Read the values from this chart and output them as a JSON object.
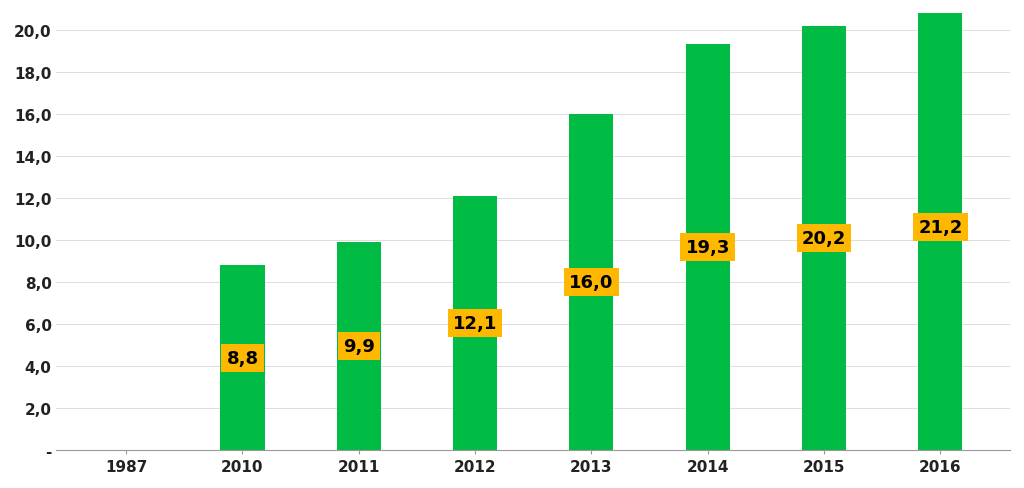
{
  "categories": [
    "1987",
    "2010",
    "2011",
    "2012",
    "2013",
    "2014",
    "2015",
    "2016"
  ],
  "values": [
    0,
    8.8,
    9.9,
    12.1,
    16.0,
    19.3,
    20.2,
    21.2
  ],
  "bar_color": "#00BB44",
  "label_bg_color": "#FFB800",
  "label_text_color": "#000000",
  "ylim": [
    0,
    20.8
  ],
  "yticks": [
    0,
    2.0,
    4.0,
    6.0,
    8.0,
    10.0,
    12.0,
    14.0,
    16.0,
    18.0,
    20.0
  ],
  "ytick_labels": [
    "-",
    "2,0",
    "4,0",
    "6,0",
    "8,0",
    "10,0",
    "12,0",
    "14,0",
    "16,0",
    "18,0",
    "20,0"
  ],
  "bar_width": 0.38,
  "label_fontsize": 13,
  "tick_fontsize": 11,
  "background_color": "#FFFFFF",
  "label_y_positions": [
    4.4,
    4.95,
    6.05,
    8.0,
    9.65,
    10.1,
    10.6
  ]
}
